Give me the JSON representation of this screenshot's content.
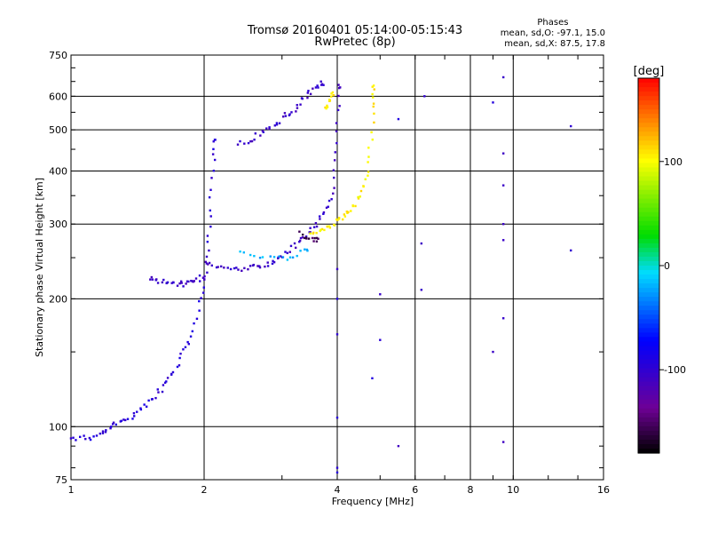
{
  "title": "Tromsø 20160401 05:14:00-05:15:43",
  "subtitle": "RwPretec (8p)",
  "phases": {
    "header": "Phases",
    "o_mode": "mean, sd,O: -97.1, 15.0",
    "x_mode": "mean, sd,X: 87.5, 17.8"
  },
  "chart_data": {
    "type": "scatter",
    "xlabel": "Frequency [MHz]",
    "ylabel": "Stationary phase Virtual Height [km]",
    "x_scale": "log",
    "y_scale": "log",
    "xlim": [
      1,
      16
    ],
    "ylim": [
      75,
      750
    ],
    "x_ticks": [
      1,
      2,
      4,
      6,
      8,
      10,
      16
    ],
    "y_ticks": [
      75,
      100,
      200,
      300,
      400,
      500,
      600,
      750
    ],
    "grid": true,
    "colorbar": {
      "label": "[deg]",
      "range": [
        -180,
        180
      ],
      "ticks": [
        -100,
        0,
        100
      ],
      "colormap": "rainbow"
    },
    "series": [
      {
        "points": [
          [
            1.0,
            94
          ],
          [
            1.05,
            94
          ],
          [
            1.1,
            94
          ],
          [
            1.15,
            95
          ],
          [
            1.18,
            97
          ],
          [
            1.22,
            99
          ],
          [
            1.25,
            101
          ],
          [
            1.3,
            103
          ],
          [
            1.35,
            105
          ],
          [
            1.4,
            107
          ],
          [
            1.45,
            110
          ],
          [
            1.5,
            114
          ],
          [
            1.55,
            118
          ],
          [
            1.6,
            122
          ],
          [
            1.65,
            127
          ],
          [
            1.7,
            133
          ],
          [
            1.75,
            140
          ],
          [
            1.8,
            150
          ],
          [
            1.85,
            160
          ],
          [
            1.9,
            175
          ],
          [
            1.95,
            195
          ],
          [
            2.0,
            215
          ],
          [
            2.02,
            240
          ],
          [
            2.04,
            270
          ],
          [
            2.06,
            310
          ],
          [
            2.08,
            360
          ],
          [
            2.1,
            420
          ],
          [
            2.12,
            470
          ]
        ],
        "phase": -95
      },
      {
        "points": [
          [
            1.5,
            225
          ],
          [
            1.55,
            222
          ],
          [
            1.6,
            220
          ],
          [
            1.65,
            218
          ],
          [
            1.7,
            218
          ],
          [
            1.75,
            217
          ],
          [
            1.8,
            217
          ],
          [
            1.85,
            218
          ],
          [
            1.9,
            220
          ],
          [
            1.95,
            223
          ],
          [
            2.0,
            225
          ]
        ],
        "phase": -105
      },
      {
        "points": [
          [
            2.0,
            245
          ],
          [
            2.1,
            238
          ],
          [
            2.2,
            236
          ],
          [
            2.3,
            235
          ],
          [
            2.4,
            235
          ],
          [
            2.5,
            236
          ],
          [
            2.6,
            237
          ],
          [
            2.7,
            239
          ],
          [
            2.8,
            242
          ],
          [
            2.9,
            246
          ],
          [
            3.0,
            252
          ],
          [
            3.1,
            258
          ],
          [
            3.2,
            265
          ],
          [
            3.3,
            273
          ],
          [
            3.4,
            282
          ],
          [
            3.5,
            292
          ],
          [
            3.6,
            303
          ],
          [
            3.7,
            315
          ],
          [
            3.8,
            330
          ],
          [
            3.9,
            355
          ],
          [
            3.95,
            400
          ],
          [
            4.0,
            460
          ],
          [
            4.02,
            550
          ],
          [
            4.03,
            630
          ]
        ],
        "phase": -105
      },
      {
        "points": [
          [
            2.4,
            260
          ],
          [
            2.6,
            255
          ],
          [
            2.8,
            250
          ],
          [
            3.0,
            248
          ],
          [
            3.2,
            252
          ],
          [
            3.4,
            260
          ]
        ],
        "phase": -20
      },
      {
        "points": [
          [
            3.5,
            282
          ],
          [
            3.6,
            285
          ],
          [
            3.7,
            290
          ],
          [
            3.8,
            295
          ],
          [
            3.9,
            300
          ],
          [
            4.0,
            305
          ],
          [
            4.1,
            310
          ],
          [
            4.2,
            318
          ],
          [
            4.3,
            325
          ],
          [
            4.4,
            335
          ],
          [
            4.5,
            350
          ],
          [
            4.6,
            370
          ],
          [
            4.7,
            400
          ],
          [
            4.75,
            450
          ],
          [
            4.8,
            520
          ],
          [
            4.82,
            580
          ],
          [
            4.85,
            630
          ]
        ],
        "phase": 105
      },
      {
        "points": [
          [
            3.3,
            285
          ],
          [
            3.4,
            280
          ],
          [
            3.5,
            278
          ],
          [
            3.6,
            276
          ]
        ],
        "phase": -155
      },
      {
        "points": [
          [
            2.4,
            465
          ],
          [
            2.5,
            470
          ],
          [
            2.6,
            480
          ],
          [
            2.7,
            490
          ],
          [
            2.8,
            500
          ],
          [
            2.9,
            515
          ],
          [
            3.0,
            530
          ],
          [
            3.1,
            545
          ],
          [
            3.2,
            560
          ],
          [
            3.3,
            580
          ],
          [
            3.4,
            600
          ],
          [
            3.5,
            615
          ],
          [
            3.6,
            630
          ],
          [
            3.7,
            645
          ]
        ],
        "phase": -105
      },
      {
        "points": [
          [
            3.75,
            560
          ],
          [
            3.8,
            575
          ],
          [
            3.85,
            590
          ],
          [
            3.9,
            605
          ]
        ],
        "phase": 110
      },
      {
        "points": [
          [
            5.5,
            90
          ],
          [
            6.2,
            210
          ],
          [
            6.2,
            270
          ],
          [
            6.3,
            600
          ],
          [
            5.5,
            530
          ],
          [
            9.5,
            665
          ],
          [
            9.5,
            440
          ],
          [
            9.5,
            370
          ],
          [
            9.5,
            300
          ],
          [
            9.5,
            275
          ],
          [
            9.5,
            180
          ],
          [
            9.5,
            92
          ],
          [
            9.0,
            150
          ],
          [
            9.0,
            580
          ],
          [
            13.5,
            510
          ],
          [
            13.5,
            260
          ],
          [
            4.0,
            235
          ],
          [
            4.0,
            200
          ],
          [
            4.0,
            165
          ],
          [
            4.0,
            105
          ],
          [
            4.0,
            80
          ],
          [
            4.0,
            78
          ],
          [
            4.8,
            130
          ],
          [
            5.0,
            205
          ],
          [
            5.0,
            160
          ]
        ],
        "phase": -100
      }
    ]
  }
}
